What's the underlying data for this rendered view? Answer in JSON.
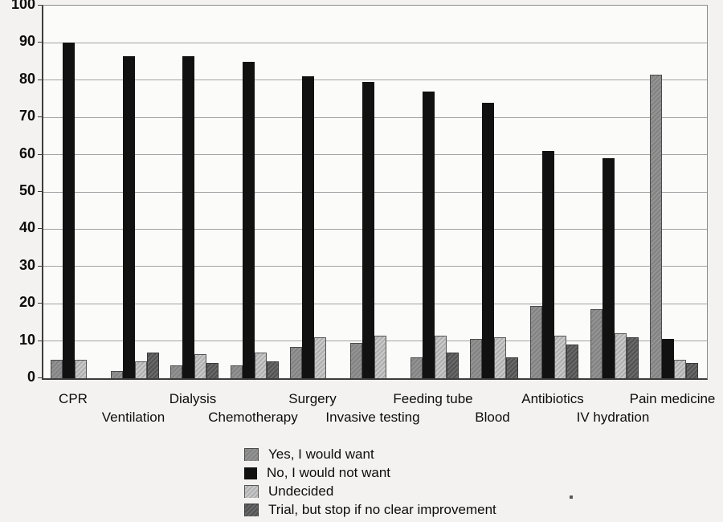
{
  "chart_data": {
    "type": "bar",
    "title": "",
    "xlabel": "",
    "ylabel": "",
    "ylim": [
      0,
      100
    ],
    "y_ticks": [
      0,
      10,
      20,
      30,
      40,
      50,
      60,
      70,
      80,
      90,
      100
    ],
    "grid": true,
    "legend_position": "bottom-center",
    "categories": [
      "CPR",
      "Ventilation",
      "Dialysis",
      "Chemotherapy",
      "Surgery",
      "Invasive testing",
      "Feeding tube",
      "Blood",
      "Antibiotics",
      "IV hydration",
      "Pain medicine"
    ],
    "series": [
      {
        "name": "Yes, I would want",
        "key": "yes",
        "color": "#8a8a8a",
        "values": [
          5,
          2,
          3.5,
          3.5,
          8.5,
          9.5,
          5.5,
          10.5,
          19.5,
          18.5,
          81.5
        ]
      },
      {
        "name": "No, I would not want",
        "key": "no",
        "color": "#111111",
        "values": [
          90,
          86.5,
          86.5,
          85,
          81,
          79.5,
          77,
          74,
          61,
          59,
          10.5
        ]
      },
      {
        "name": "Undecided",
        "key": "undecided",
        "color": "#c0c0c0",
        "values": [
          5,
          4.5,
          6.5,
          7,
          11,
          11.5,
          11.5,
          11,
          11.5,
          12,
          5
        ]
      },
      {
        "name": "Trial, but stop if no clear improvement",
        "key": "trial",
        "color": "#5e5e5e",
        "values": [
          0,
          7,
          4,
          4.5,
          0,
          0,
          7,
          5.5,
          9,
          11,
          4
        ]
      }
    ]
  }
}
